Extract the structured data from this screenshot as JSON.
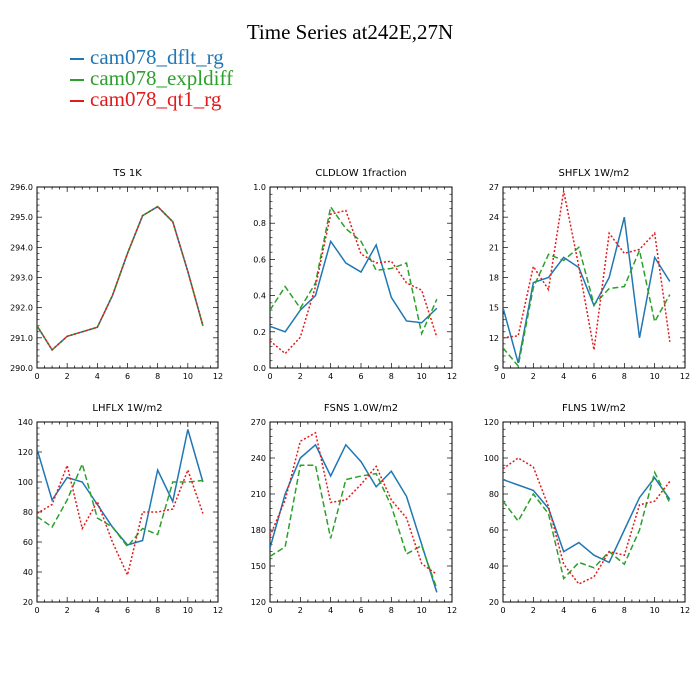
{
  "title": "Time Series at242E,27N",
  "legend": [
    {
      "label": "cam078_dflt_rg",
      "color": "#1f77b4",
      "dash": ""
    },
    {
      "label": "cam078_expldiff",
      "color": "#2ca02c",
      "dash": "6,3"
    },
    {
      "label": "cam078_qt1_rg",
      "color": "#e31a1c",
      "dash": "2,2"
    }
  ],
  "chart_data": [
    {
      "type": "line",
      "title": "TS   1K",
      "x": [
        0,
        1,
        2,
        3,
        4,
        5,
        6,
        7,
        8,
        9,
        10,
        11
      ],
      "xlim": [
        0,
        12
      ],
      "xticks": [
        0,
        2,
        4,
        6,
        8,
        10,
        12
      ],
      "ylim": [
        290,
        296
      ],
      "yticks": [
        "290.0",
        "291.0",
        "292.0",
        "293.0",
        "294.0",
        "295.0",
        "296.0"
      ],
      "series": [
        {
          "name": "cam078_dflt_rg",
          "values": [
            291.4,
            290.6,
            291.05,
            291.2,
            291.35,
            292.4,
            293.8,
            295.05,
            295.35,
            294.85,
            293.2,
            291.4
          ]
        },
        {
          "name": "cam078_expldiff",
          "values": [
            291.4,
            290.6,
            291.05,
            291.2,
            291.35,
            292.4,
            293.8,
            295.05,
            295.35,
            294.85,
            293.2,
            291.4
          ]
        },
        {
          "name": "cam078_qt1_rg",
          "values": [
            291.4,
            290.6,
            291.05,
            291.2,
            291.35,
            292.4,
            293.8,
            295.05,
            295.35,
            294.85,
            293.2,
            291.4
          ]
        }
      ]
    },
    {
      "type": "line",
      "title": "CLDLOW   1fraction",
      "x": [
        0,
        1,
        2,
        3,
        4,
        5,
        6,
        7,
        8,
        9,
        10,
        11
      ],
      "xlim": [
        0,
        12
      ],
      "xticks": [
        0,
        2,
        4,
        6,
        8,
        10,
        12
      ],
      "ylim": [
        0,
        1
      ],
      "yticks": [
        "0.0",
        "0.2",
        "0.4",
        "0.6",
        "0.8",
        "1.0"
      ],
      "series": [
        {
          "name": "cam078_dflt_rg",
          "values": [
            0.23,
            0.2,
            0.32,
            0.4,
            0.7,
            0.58,
            0.53,
            0.68,
            0.39,
            0.26,
            0.25,
            0.33
          ]
        },
        {
          "name": "cam078_expldiff",
          "values": [
            0.32,
            0.45,
            0.33,
            0.47,
            0.89,
            0.77,
            0.7,
            0.54,
            0.55,
            0.58,
            0.19,
            0.38
          ]
        },
        {
          "name": "cam078_qt1_rg",
          "values": [
            0.15,
            0.08,
            0.17,
            0.45,
            0.85,
            0.87,
            0.63,
            0.58,
            0.59,
            0.47,
            0.43,
            0.17
          ]
        }
      ]
    },
    {
      "type": "line",
      "title": "SHFLX   1W/m2",
      "x": [
        0,
        1,
        2,
        3,
        4,
        5,
        6,
        7,
        8,
        9,
        10,
        11
      ],
      "xlim": [
        0,
        12
      ],
      "xticks": [
        0,
        2,
        4,
        6,
        8,
        10,
        12
      ],
      "ylim": [
        9,
        27
      ],
      "yticks": [
        "9",
        "12",
        "15",
        "18",
        "21",
        "24",
        "27"
      ],
      "series": [
        {
          "name": "cam078_dflt_rg",
          "values": [
            15,
            9.5,
            17.5,
            18,
            20,
            19,
            15.2,
            18,
            24,
            12,
            20,
            17.6
          ]
        },
        {
          "name": "cam078_expldiff",
          "values": [
            11,
            9.2,
            17,
            20.3,
            19.7,
            21,
            15.3,
            16.9,
            17.1,
            20.7,
            13.6,
            16.3
          ]
        },
        {
          "name": "cam078_qt1_rg",
          "values": [
            12,
            12.2,
            19.1,
            16.8,
            26.6,
            19.1,
            10.8,
            22.4,
            20.4,
            20.8,
            22.4,
            11.6
          ]
        }
      ]
    },
    {
      "type": "line",
      "title": "LHFLX   1W/m2",
      "x": [
        0,
        1,
        2,
        3,
        4,
        5,
        6,
        7,
        8,
        9,
        10,
        11
      ],
      "xlim": [
        0,
        12
      ],
      "xticks": [
        0,
        2,
        4,
        6,
        8,
        10,
        12
      ],
      "ylim": [
        20,
        140
      ],
      "yticks": [
        "20",
        "40",
        "60",
        "80",
        "100",
        "120",
        "140"
      ],
      "series": [
        {
          "name": "cam078_dflt_rg",
          "values": [
            122,
            88,
            103,
            100,
            85,
            70,
            58,
            61,
            108,
            87,
            135,
            100
          ]
        },
        {
          "name": "cam078_expldiff",
          "values": [
            77,
            70,
            88,
            112,
            76,
            70,
            57,
            69,
            65,
            100,
            100,
            101
          ]
        },
        {
          "name": "cam078_qt1_rg",
          "values": [
            79,
            85,
            111,
            69,
            87,
            60,
            38,
            80,
            80,
            82,
            108,
            79
          ]
        }
      ]
    },
    {
      "type": "line",
      "title": "FSNS   1.0W/m2",
      "x": [
        0,
        1,
        2,
        3,
        4,
        5,
        6,
        7,
        8,
        9,
        10,
        11
      ],
      "xlim": [
        0,
        12
      ],
      "xticks": [
        0,
        2,
        4,
        6,
        8,
        10,
        12
      ],
      "ylim": [
        120,
        270
      ],
      "yticks": [
        "120",
        "150",
        "180",
        "210",
        "240",
        "270"
      ],
      "series": [
        {
          "name": "cam078_dflt_rg",
          "values": [
            165,
            210,
            240,
            251,
            225,
            251,
            237,
            216,
            229,
            208,
            168,
            128
          ]
        },
        {
          "name": "cam078_expldiff",
          "values": [
            158,
            166,
            234,
            234,
            173,
            222,
            225,
            227,
            200,
            160,
            167,
            131
          ]
        },
        {
          "name": "cam078_qt1_rg",
          "values": [
            175,
            205,
            254,
            261,
            203,
            205,
            218,
            233,
            205,
            190,
            152,
            143
          ]
        }
      ]
    },
    {
      "type": "line",
      "title": "FLNS   1W/m2",
      "x": [
        0,
        1,
        2,
        3,
        4,
        5,
        6,
        7,
        8,
        9,
        10,
        11
      ],
      "xlim": [
        0,
        12
      ],
      "xticks": [
        0,
        2,
        4,
        6,
        8,
        10,
        12
      ],
      "ylim": [
        20,
        120
      ],
      "yticks": [
        "20",
        "40",
        "60",
        "80",
        "100",
        "120"
      ],
      "series": [
        {
          "name": "cam078_dflt_rg",
          "values": [
            88,
            85,
            82,
            72,
            48,
            53,
            46,
            42,
            60,
            78,
            89,
            77
          ]
        },
        {
          "name": "cam078_expldiff",
          "values": [
            76,
            65,
            80,
            69,
            33,
            42,
            39,
            48,
            41,
            60,
            92,
            75
          ]
        },
        {
          "name": "cam078_qt1_rg",
          "values": [
            94,
            100,
            95,
            73,
            41,
            30,
            34,
            48,
            46,
            74,
            76,
            87
          ]
        }
      ]
    }
  ]
}
